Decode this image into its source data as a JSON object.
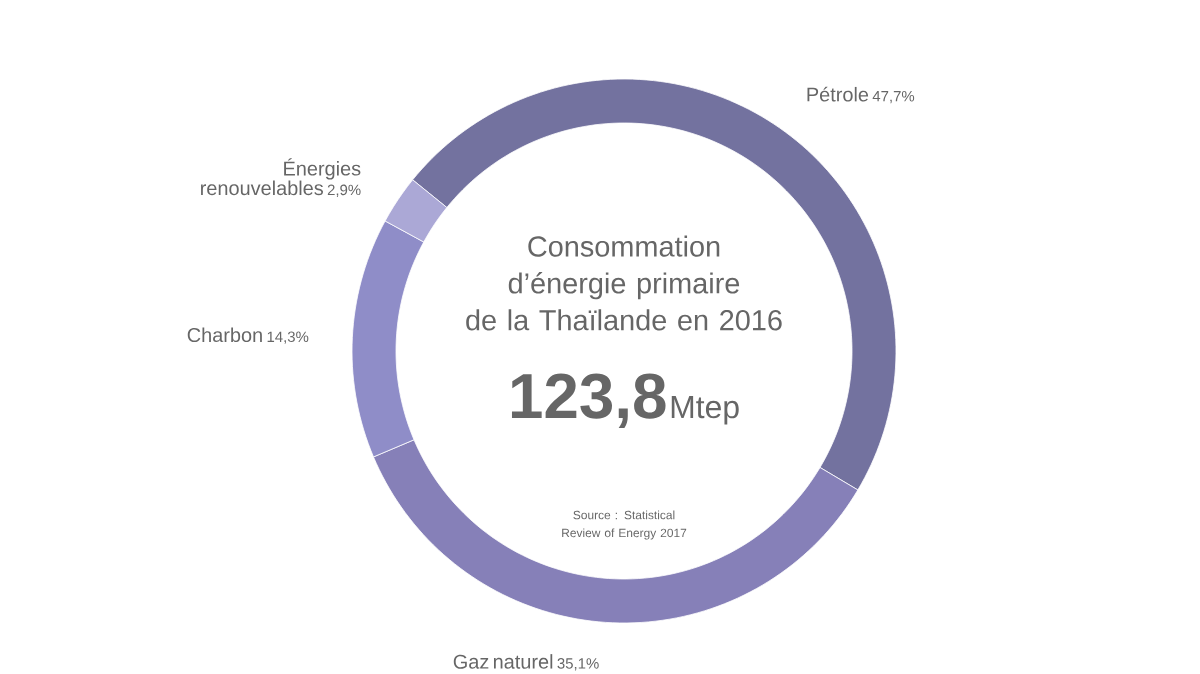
{
  "chart_data": {
    "type": "donut",
    "title": "Consommation d’énergie primaire de la Thaïlande en 2016",
    "categories": [
      "Pétrole",
      "Gaz naturel",
      "Charbon",
      "Énergies renouvelables"
    ],
    "values": [
      47.7,
      35.1,
      14.3,
      2.9
    ],
    "colors": [
      "#73729f",
      "#8680b8",
      "#8f8dc8",
      "#aba8d6"
    ],
    "value_labels": [
      "47,7%",
      "35,1%",
      "14,3%",
      "2,9%"
    ],
    "annotations": [
      "123,8",
      "Mtep",
      "Source : Statistical Review of Energy 2017"
    ]
  }
}
